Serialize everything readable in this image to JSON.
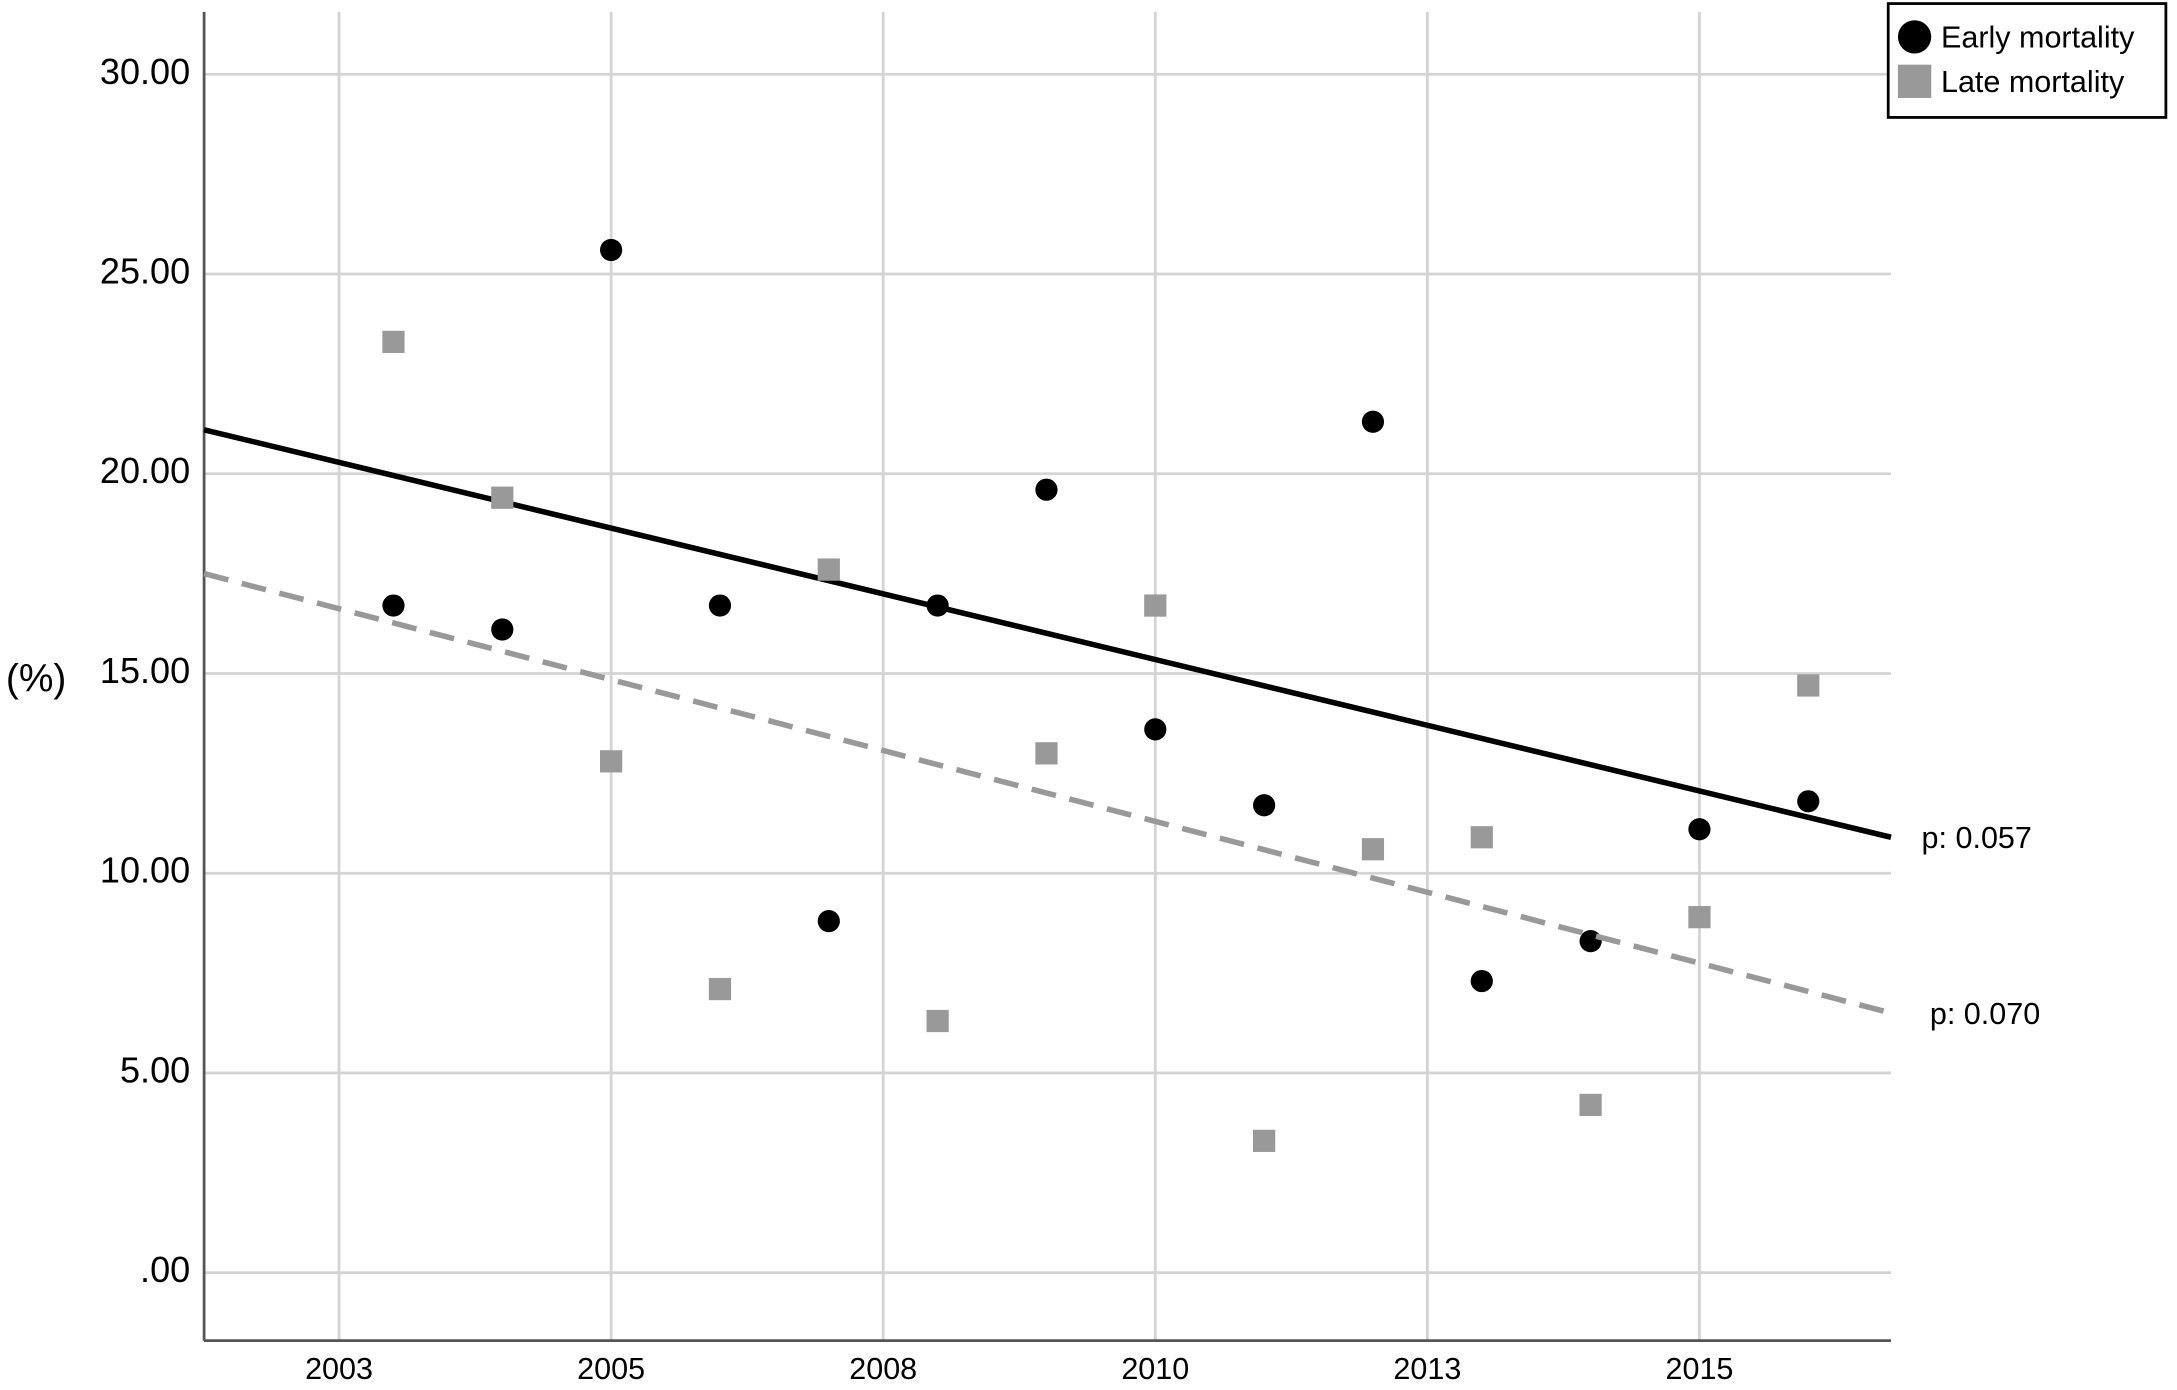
{
  "chart_data": {
    "type": "scatter",
    "y_label": "(%)",
    "x": [
      2003,
      2004,
      2005,
      2006,
      2007,
      2008,
      2009,
      2010,
      2011,
      2012,
      2013,
      2014,
      2015,
      2016
    ],
    "series": [
      {
        "name": "Early mortality",
        "color": "#000000",
        "marker": "circle",
        "values": [
          16.7,
          16.1,
          25.6,
          16.7,
          8.8,
          16.7,
          19.6,
          13.6,
          11.7,
          21.3,
          7.3,
          8.3,
          11.1,
          11.8
        ],
        "trend": {
          "x": [
            2001.26,
            2016.76
          ],
          "values": [
            21.1,
            10.9
          ],
          "dash": false,
          "label": "p: 0.057"
        }
      },
      {
        "name": "Late mortality",
        "color": "#999999",
        "marker": "square",
        "values": [
          23.3,
          19.4,
          12.8,
          7.1,
          17.6,
          6.3,
          13.0,
          16.7,
          3.3,
          10.6,
          10.9,
          4.2,
          8.9,
          14.7
        ],
        "trend": {
          "x": [
            2001.26,
            2016.76
          ],
          "values": [
            17.5,
            6.5
          ],
          "dash": true,
          "label": "p: 0.070"
        }
      }
    ],
    "xlim": [
      2001.26,
      2016.76
    ],
    "xticks": [
      {
        "value": 2002.5,
        "label": "2003"
      },
      2005,
      {
        "value": 2007.5,
        "label": "2008"
      },
      2010,
      {
        "value": 2012.5,
        "label": "2013"
      },
      2015
    ],
    "ylim": [
      -1.7,
      31.56
    ],
    "yticks": [
      {
        "value": 0,
        "label": ".00"
      },
      {
        "value": 5,
        "label": "5.00"
      },
      {
        "value": 10,
        "label": "10.00"
      },
      {
        "value": 15,
        "label": "15.00"
      },
      {
        "value": 20,
        "label": "20.00"
      },
      {
        "value": 25,
        "label": "25.00"
      },
      {
        "value": 30,
        "label": "30.00"
      }
    ],
    "grid": true,
    "legend": "top-right"
  }
}
